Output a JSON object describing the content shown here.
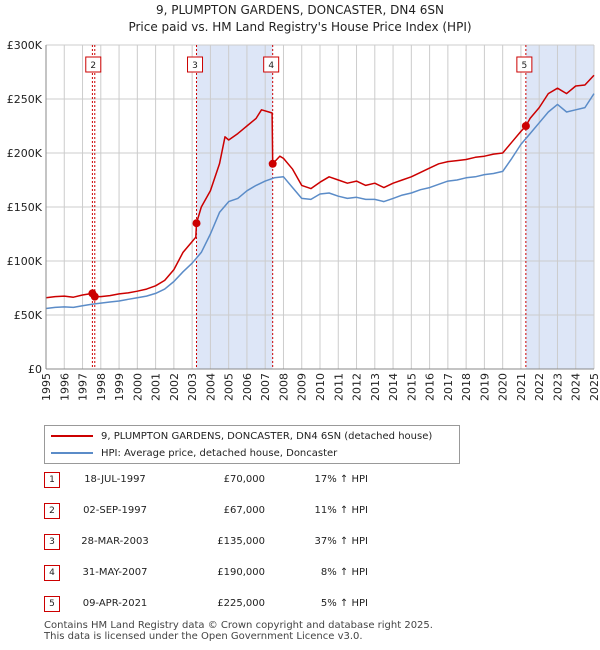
{
  "chart_data": {
    "type": "line",
    "title": "9, PLUMPTON GARDENS, DONCASTER, DN4 6SN",
    "subtitle": "Price paid vs. HM Land Registry's House Price Index (HPI)",
    "xlim": [
      1995,
      2025
    ],
    "ylim": [
      0,
      300000
    ],
    "x_ticks": [
      "1995",
      "1996",
      "1997",
      "1998",
      "1999",
      "2000",
      "2001",
      "2002",
      "2003",
      "2004",
      "2005",
      "2006",
      "2007",
      "2008",
      "2009",
      "2010",
      "2011",
      "2012",
      "2013",
      "2014",
      "2015",
      "2016",
      "2017",
      "2018",
      "2019",
      "2020",
      "2021",
      "2022",
      "2023",
      "2024",
      "2025"
    ],
    "y_ticks": [
      {
        "value": 0,
        "label": "£0"
      },
      {
        "value": 50000,
        "label": "£50K"
      },
      {
        "value": 100000,
        "label": "£100K"
      },
      {
        "value": 150000,
        "label": "£150K"
      },
      {
        "value": 200000,
        "label": "£200K"
      },
      {
        "value": 250000,
        "label": "£250K"
      },
      {
        "value": 300000,
        "label": "£300K"
      }
    ],
    "shaded_ranges": [
      [
        2003.24,
        2007.41
      ],
      [
        2021.27,
        2025.0
      ]
    ],
    "series": [
      {
        "name": "9, PLUMPTON GARDENS, DONCASTER, DN4 6SN (detached house)",
        "color": "#cc0000",
        "points": [
          [
            1995,
            66000
          ],
          [
            1995.5,
            67000
          ],
          [
            1996,
            67500
          ],
          [
            1996.5,
            66500
          ],
          [
            1997,
            68500
          ],
          [
            1997.54,
            70000
          ],
          [
            1997.67,
            67000
          ],
          [
            1998,
            67000
          ],
          [
            1998.5,
            68000
          ],
          [
            1999,
            69500
          ],
          [
            1999.5,
            70500
          ],
          [
            2000,
            72000
          ],
          [
            2000.5,
            74000
          ],
          [
            2001,
            77000
          ],
          [
            2001.5,
            82000
          ],
          [
            2002,
            92000
          ],
          [
            2002.5,
            108000
          ],
          [
            2003,
            118000
          ],
          [
            2003.2,
            122000
          ],
          [
            2003.24,
            135000
          ],
          [
            2003.5,
            150000
          ],
          [
            2004,
            165000
          ],
          [
            2004.5,
            190000
          ],
          [
            2004.8,
            215000
          ],
          [
            2005,
            212000
          ],
          [
            2005.5,
            218000
          ],
          [
            2006,
            225000
          ],
          [
            2006.5,
            232000
          ],
          [
            2006.8,
            240000
          ],
          [
            2007.2,
            238000
          ],
          [
            2007.38,
            237000
          ],
          [
            2007.41,
            190000
          ],
          [
            2007.8,
            197000
          ],
          [
            2008,
            195000
          ],
          [
            2008.5,
            185000
          ],
          [
            2009,
            170000
          ],
          [
            2009.5,
            167000
          ],
          [
            2010,
            173000
          ],
          [
            2010.5,
            178000
          ],
          [
            2011,
            175000
          ],
          [
            2011.5,
            172000
          ],
          [
            2012,
            174000
          ],
          [
            2012.5,
            170000
          ],
          [
            2013,
            172000
          ],
          [
            2013.5,
            168000
          ],
          [
            2014,
            172000
          ],
          [
            2014.5,
            175000
          ],
          [
            2015,
            178000
          ],
          [
            2015.5,
            182000
          ],
          [
            2016,
            186000
          ],
          [
            2016.5,
            190000
          ],
          [
            2017,
            192000
          ],
          [
            2017.5,
            193000
          ],
          [
            2018,
            194000
          ],
          [
            2018.5,
            196000
          ],
          [
            2019,
            197000
          ],
          [
            2019.5,
            199000
          ],
          [
            2020,
            200000
          ],
          [
            2020.5,
            210000
          ],
          [
            2021,
            220000
          ],
          [
            2021.27,
            225000
          ],
          [
            2021.5,
            232000
          ],
          [
            2022,
            242000
          ],
          [
            2022.5,
            255000
          ],
          [
            2023,
            260000
          ],
          [
            2023.5,
            255000
          ],
          [
            2024,
            262000
          ],
          [
            2024.5,
            263000
          ],
          [
            2025,
            272000
          ]
        ]
      },
      {
        "name": "HPI: Average price, detached house, Doncaster",
        "color": "#5b8cc8",
        "points": [
          [
            1995,
            56000
          ],
          [
            1995.5,
            57000
          ],
          [
            1996,
            57500
          ],
          [
            1996.5,
            57000
          ],
          [
            1997,
            58500
          ],
          [
            1997.5,
            60000
          ],
          [
            1998,
            61000
          ],
          [
            1998.5,
            62000
          ],
          [
            1999,
            63000
          ],
          [
            1999.5,
            64500
          ],
          [
            2000,
            66000
          ],
          [
            2000.5,
            67500
          ],
          [
            2001,
            70000
          ],
          [
            2001.5,
            74000
          ],
          [
            2002,
            81000
          ],
          [
            2002.5,
            90000
          ],
          [
            2003,
            98000
          ],
          [
            2003.5,
            108000
          ],
          [
            2004,
            125000
          ],
          [
            2004.5,
            145000
          ],
          [
            2005,
            155000
          ],
          [
            2005.5,
            158000
          ],
          [
            2006,
            165000
          ],
          [
            2006.5,
            170000
          ],
          [
            2007,
            174000
          ],
          [
            2007.5,
            177000
          ],
          [
            2008,
            178000
          ],
          [
            2008.5,
            168000
          ],
          [
            2009,
            158000
          ],
          [
            2009.5,
            157000
          ],
          [
            2010,
            162000
          ],
          [
            2010.5,
            163000
          ],
          [
            2011,
            160000
          ],
          [
            2011.5,
            158000
          ],
          [
            2012,
            159000
          ],
          [
            2012.5,
            157000
          ],
          [
            2013,
            157000
          ],
          [
            2013.5,
            155000
          ],
          [
            2014,
            158000
          ],
          [
            2014.5,
            161000
          ],
          [
            2015,
            163000
          ],
          [
            2015.5,
            166000
          ],
          [
            2016,
            168000
          ],
          [
            2016.5,
            171000
          ],
          [
            2017,
            174000
          ],
          [
            2017.5,
            175000
          ],
          [
            2018,
            177000
          ],
          [
            2018.5,
            178000
          ],
          [
            2019,
            180000
          ],
          [
            2019.5,
            181000
          ],
          [
            2020,
            183000
          ],
          [
            2020.5,
            195000
          ],
          [
            2021,
            208000
          ],
          [
            2021.5,
            218000
          ],
          [
            2022,
            228000
          ],
          [
            2022.5,
            238000
          ],
          [
            2023,
            245000
          ],
          [
            2023.5,
            238000
          ],
          [
            2024,
            240000
          ],
          [
            2024.5,
            242000
          ],
          [
            2025,
            255000
          ]
        ]
      }
    ],
    "sales": [
      {
        "id": "1",
        "x": 1997.54,
        "price": 70000,
        "label_shown": false
      },
      {
        "id": "2",
        "x": 1997.67,
        "price": 67000,
        "label_shown": true
      },
      {
        "id": "3",
        "x": 2003.24,
        "price": 135000,
        "label_shown": true
      },
      {
        "id": "4",
        "x": 2007.41,
        "price": 190000,
        "label_shown": true
      },
      {
        "id": "5",
        "x": 2021.27,
        "price": 225000,
        "label_shown": true
      }
    ]
  },
  "legend": {
    "property_label": "9, PLUMPTON GARDENS, DONCASTER, DN4 6SN (detached house)",
    "hpi_label": "HPI: Average price, detached house, Doncaster"
  },
  "table": [
    {
      "num": "1",
      "date": "18-JUL-1997",
      "price": "£70,000",
      "hpi": "17% ↑ HPI"
    },
    {
      "num": "2",
      "date": "02-SEP-1997",
      "price": "£67,000",
      "hpi": "11% ↑ HPI"
    },
    {
      "num": "3",
      "date": "28-MAR-2003",
      "price": "£135,000",
      "hpi": "37% ↑ HPI"
    },
    {
      "num": "4",
      "date": "31-MAY-2007",
      "price": "£190,000",
      "hpi": "8% ↑ HPI"
    },
    {
      "num": "5",
      "date": "09-APR-2021",
      "price": "£225,000",
      "hpi": "5% ↑ HPI"
    }
  ],
  "footer": {
    "line1": "Contains HM Land Registry data © Crown copyright and database right 2025.",
    "line2": "This data is licensed under the Open Government Licence v3.0."
  },
  "colors": {
    "property": "#cc0000",
    "hpi": "#5b8cc8",
    "shade": "#dde6f7",
    "grid": "#cccccc"
  }
}
